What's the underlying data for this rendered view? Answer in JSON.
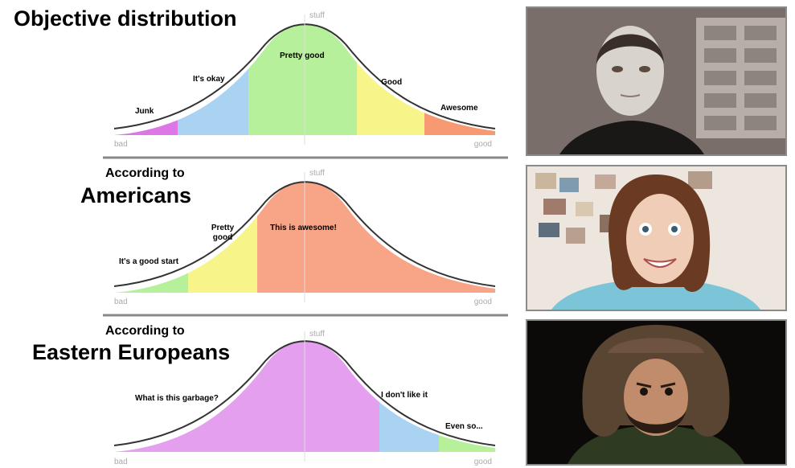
{
  "panels": [
    {
      "heading_line1": "Objective distribution",
      "heading_line2": "",
      "axis_top": "stuff",
      "axis_left": "bad",
      "axis_right": "good",
      "segments": [
        {
          "label": "Junk",
          "color": "#dd77e6"
        },
        {
          "label": "It's okay",
          "color": "#a9d3f1"
        },
        {
          "label": "Pretty good",
          "color": "#b6f09a"
        },
        {
          "label": "Good",
          "color": "#f7f48a"
        },
        {
          "label": "Awesome",
          "color": "#f79a73"
        }
      ]
    },
    {
      "heading_line1": "According to",
      "heading_line2": "Americans",
      "axis_top": "stuff",
      "axis_left": "bad",
      "axis_right": "good",
      "segments": [
        {
          "label": "It's a good start",
          "color": "#b6f09a"
        },
        {
          "label": "Pretty good",
          "color": "#f7f48a"
        },
        {
          "label": "This is awesome!",
          "color": "#f7a487"
        }
      ]
    },
    {
      "heading_line1": "According to",
      "heading_line2": "Eastern Europeans",
      "axis_top": "stuff",
      "axis_left": "bad",
      "axis_right": "good",
      "segments": [
        {
          "label": "What is this garbage?",
          "color": "#e4a0ef"
        },
        {
          "label": "I don't like it",
          "color": "#a9d3f1"
        },
        {
          "label": "Even so...",
          "color": "#b6f09a"
        }
      ]
    }
  ],
  "photos": [
    {
      "icon": "android-officer-portrait"
    },
    {
      "icon": "smiling-woman-portrait"
    },
    {
      "icon": "man-in-fur-hat-portrait"
    }
  ]
}
